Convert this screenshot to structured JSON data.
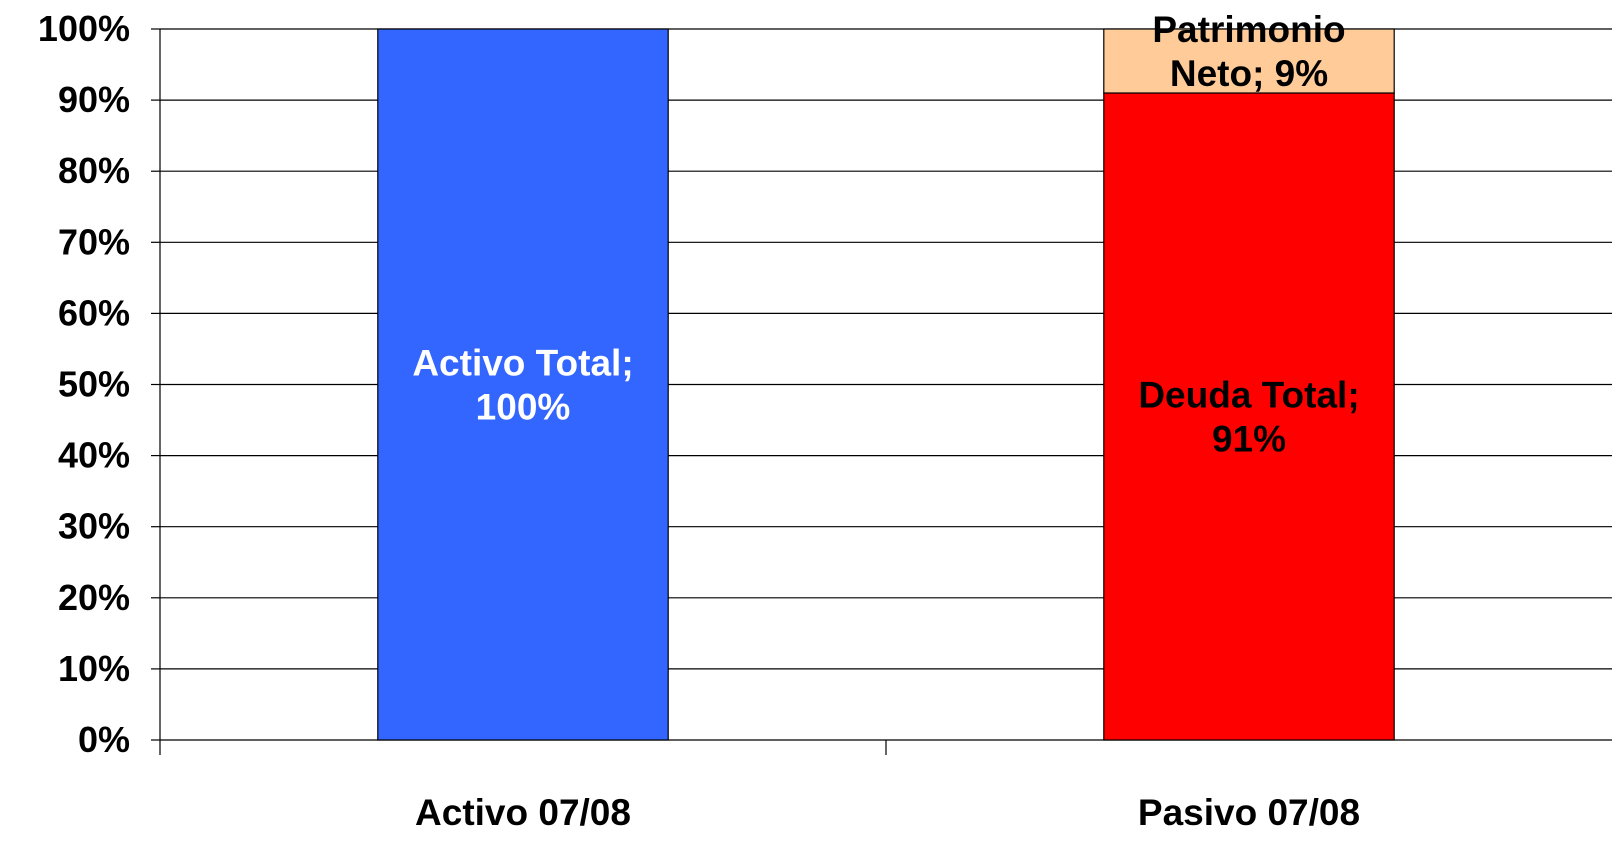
{
  "chart_data": {
    "type": "bar",
    "stacked": true,
    "categories": [
      "Activo 07/08",
      "Pasivo 07/08"
    ],
    "series": [
      {
        "name": "Activo Total",
        "values": [
          100,
          0
        ],
        "color": "#3366ff",
        "label_color": "#ffffff",
        "data_labels": [
          "Activo Total;\n100%",
          ""
        ]
      },
      {
        "name": "Deuda Total",
        "values": [
          0,
          91
        ],
        "color": "#ff0000",
        "label_color": "#000000",
        "data_labels": [
          "",
          "Deuda Total;\n91%"
        ]
      },
      {
        "name": "Patrimonio Neto",
        "values": [
          0,
          9
        ],
        "color": "#ffcc99",
        "label_color": "#000000",
        "data_labels": [
          "",
          "Patrimonio\nNeto; 9%"
        ]
      }
    ],
    "ylim": [
      0,
      100
    ],
    "yticks": [
      0,
      10,
      20,
      30,
      40,
      50,
      60,
      70,
      80,
      90,
      100
    ],
    "ytick_labels": [
      "0%",
      "10%",
      "20%",
      "30%",
      "40%",
      "50%",
      "60%",
      "70%",
      "80%",
      "90%",
      "100%"
    ],
    "grid": true,
    "legend": "none",
    "title": "",
    "xlabel": "",
    "ylabel": ""
  }
}
